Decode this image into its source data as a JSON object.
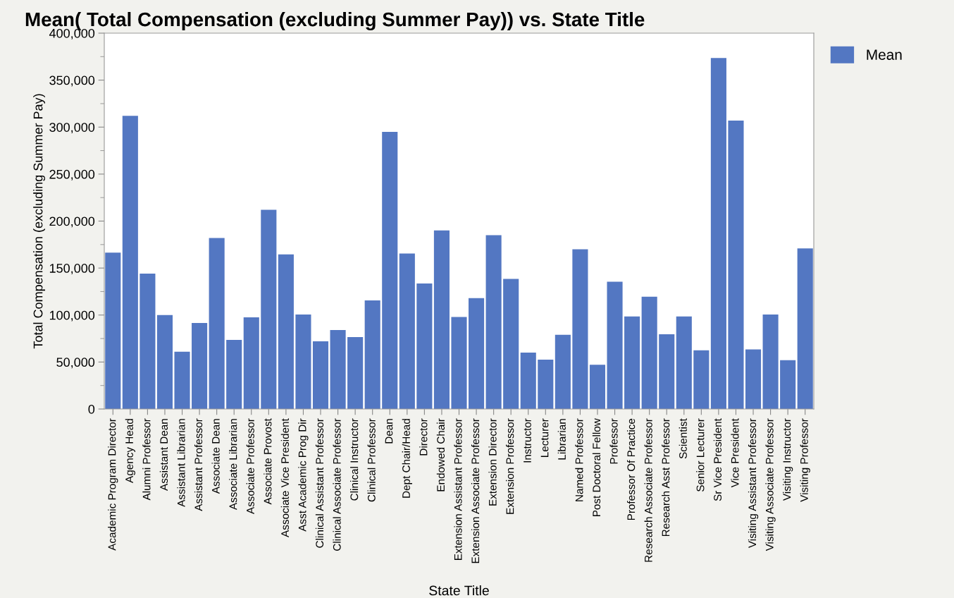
{
  "chart_data": {
    "type": "bar",
    "title": "Mean( Total Compensation (excluding Summer Pay)) vs. State Title",
    "xlabel": "State Title",
    "ylabel": "Total Compensation (excluding Summer Pay)",
    "categories": [
      "Academic Program Director",
      "Agency Head",
      "Alumni Professor",
      "Assistant Dean",
      "Assistant Librarian",
      "Assistant Professor",
      "Associate Dean",
      "Associate Librarian",
      "Associate Professor",
      "Associate Provost",
      "Associate Vice President",
      "Asst Academic Prog Dir",
      "Clinical Assistant Professor",
      "Clinical Associate Professor",
      "Clinical Instructor",
      "Clinical Professor",
      "Dean",
      "Dept Chair/Head",
      "Director",
      "Endowed Chair",
      "Extension Assistant Professor",
      "Extension Associate Professor",
      "Extension Director",
      "Extension Professor",
      "Instructor",
      "Lecturer",
      "Librarian",
      "Named Professor",
      "Post Doctoral Fellow",
      "Professor",
      "Professor Of Practice",
      "Research Associate Professor",
      "Research Asst Professor",
      "Scientist",
      "Senior Lecturer",
      "Sr Vice President",
      "Vice President",
      "Visiting Assistant Professor",
      "Visiting Associate Professor",
      "Visiting Instructor",
      "Visiting Professor"
    ],
    "series": [
      {
        "name": "Mean",
        "color": "#5377c2",
        "values": [
          166500,
          312000,
          144000,
          100000,
          61000,
          91500,
          182000,
          73500,
          97500,
          212000,
          164500,
          100500,
          72000,
          84000,
          76500,
          115500,
          295000,
          165500,
          133500,
          190000,
          98000,
          118000,
          185000,
          138500,
          60000,
          52500,
          79000,
          170000,
          47000,
          135500,
          98500,
          119500,
          79500,
          98500,
          62500,
          373500,
          307000,
          63500,
          100500,
          52000,
          171000
        ]
      }
    ],
    "ylim": [
      0,
      400000
    ],
    "yticks": [
      0,
      {
        "value": 50000,
        "label": "50,000"
      },
      {
        "value": 100000,
        "label": "100,000"
      },
      {
        "value": 150000,
        "label": "150,000"
      },
      {
        "value": 200000,
        "label": "200,000"
      },
      {
        "value": 250000,
        "label": "250,000"
      },
      {
        "value": 300000,
        "label": "300,000"
      },
      {
        "value": 350000,
        "label": "350,000"
      },
      {
        "value": 400000,
        "label": "400,000"
      }
    ],
    "grid": false,
    "legend": "top right"
  }
}
